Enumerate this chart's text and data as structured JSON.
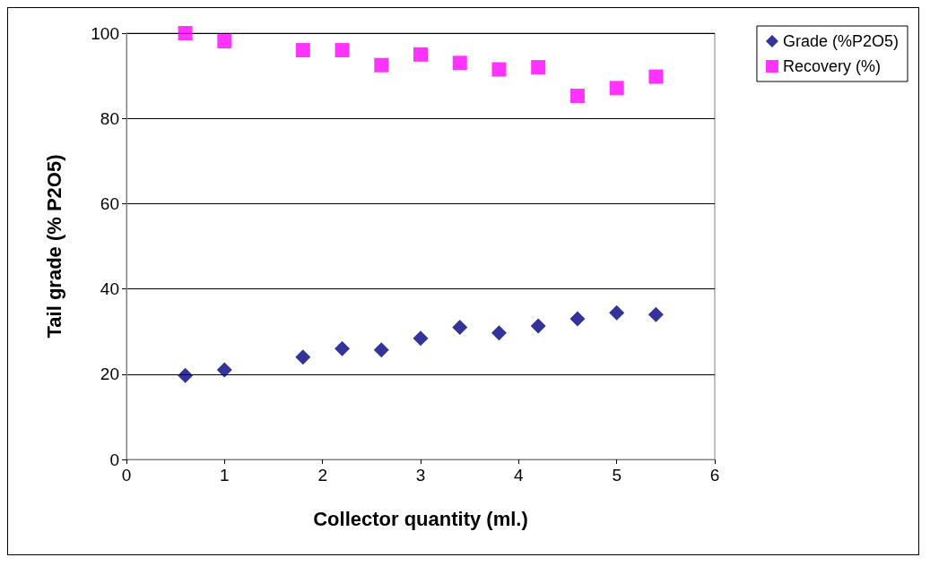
{
  "chart_data": {
    "type": "scatter",
    "xlabel": "Collector quantity (ml.)",
    "ylabel": "Tail grade (% P2O5)",
    "xlim": [
      0,
      6
    ],
    "xticks": [
      0,
      1,
      2,
      3,
      4,
      5,
      6
    ],
    "ylim": [
      0,
      100
    ],
    "yticks": [
      0,
      20,
      40,
      60,
      80,
      100
    ],
    "grid": "y",
    "legend": "top right",
    "series": [
      {
        "name": "Grade (%P2O5)",
        "color": "#000080",
        "marker": "diamond",
        "x": [
          0.6,
          1.0,
          1.8,
          2.2,
          2.6,
          3.0,
          3.4,
          3.8,
          4.2,
          4.6,
          5.0,
          5.4
        ],
        "values": [
          19.7,
          21,
          24,
          26,
          25.7,
          28.4,
          31,
          29.7,
          31.3,
          33,
          34.4,
          34
        ]
      },
      {
        "name": "Recovery (%)",
        "color": "#ff00ff",
        "marker": "square",
        "x": [
          0.6,
          1.0,
          1.8,
          2.2,
          2.6,
          3.0,
          3.4,
          3.8,
          4.2,
          4.6,
          5.0,
          5.4
        ],
        "values": [
          100,
          98.1,
          96,
          96,
          92.5,
          95,
          93,
          91.5,
          92,
          85.3,
          87.1,
          89.8
        ]
      }
    ]
  }
}
